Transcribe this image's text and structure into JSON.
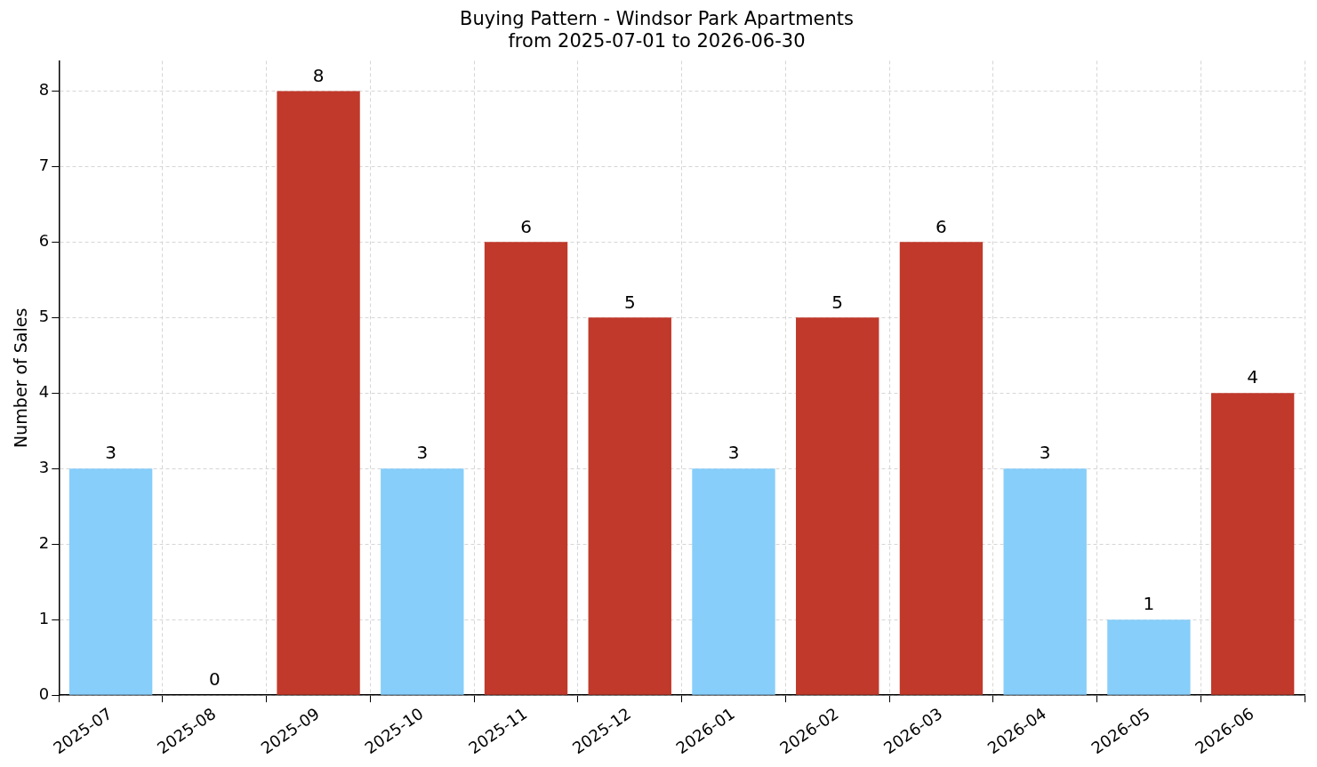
{
  "chart_data": {
    "type": "bar",
    "title": "Buying Pattern - Windsor Park Apartments",
    "subtitle": "from 2025-07-01 to 2026-06-30",
    "ylabel": "Number of Sales",
    "categories": [
      "2025-07",
      "2025-08",
      "2025-09",
      "2025-10",
      "2025-11",
      "2025-12",
      "2026-01",
      "2026-02",
      "2026-03",
      "2026-04",
      "2026-05",
      "2026-06"
    ],
    "values": [
      3,
      0,
      8,
      3,
      6,
      5,
      3,
      5,
      6,
      3,
      1,
      4
    ],
    "colors": [
      "#87cefa",
      "#87cefa",
      "#c0392b",
      "#87cefa",
      "#c0392b",
      "#c0392b",
      "#87cefa",
      "#c0392b",
      "#c0392b",
      "#87cefa",
      "#87cefa",
      "#c0392b"
    ],
    "ylim": [
      0,
      8.4
    ],
    "yticks": [
      0,
      1,
      2,
      3,
      4,
      5,
      6,
      7,
      8
    ],
    "grid": true,
    "legend": false,
    "data_labels": true
  }
}
